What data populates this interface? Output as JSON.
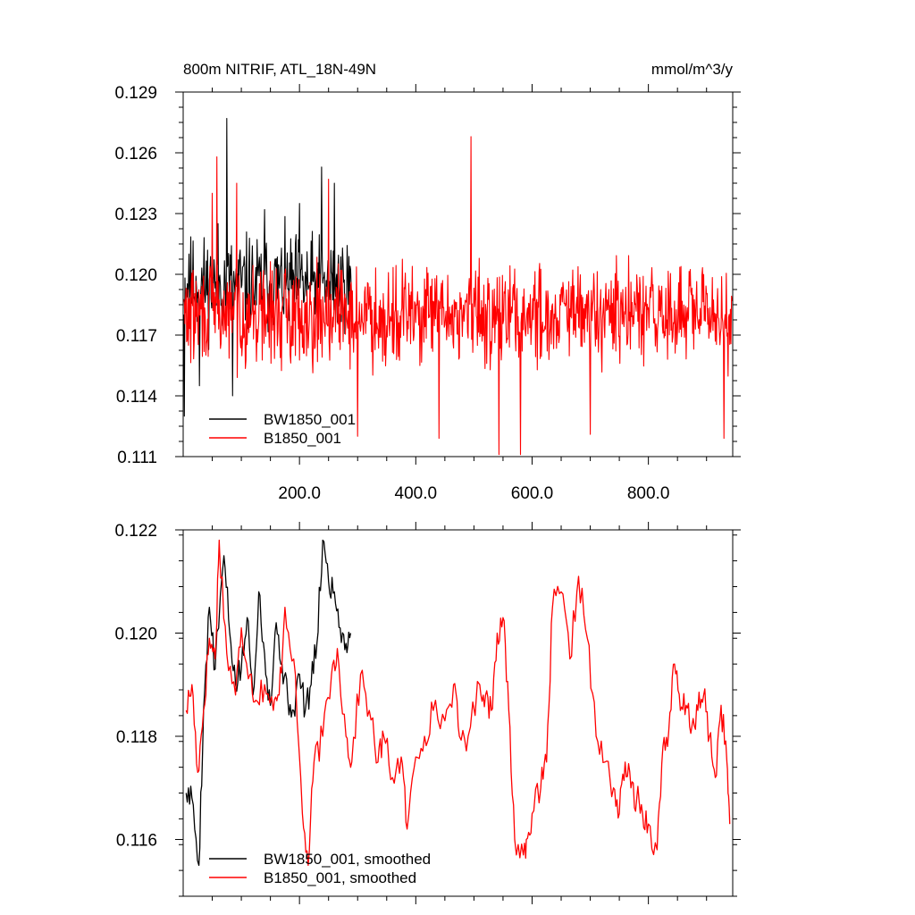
{
  "chart_data": [
    {
      "type": "line",
      "title": "800m NITRIF, ATL_18N-49N",
      "units": "mmol/m^3/y",
      "xlabel": "",
      "ylabel": "",
      "xlim": [
        0,
        945
      ],
      "ylim": [
        0.111,
        0.129
      ],
      "xticks": [
        200,
        400,
        600,
        800
      ],
      "xtick_labels": [
        "200.0",
        "400.0",
        "600.0",
        "800.0"
      ],
      "yticks": [
        0.111,
        0.114,
        0.117,
        0.12,
        0.123,
        0.126,
        0.129
      ],
      "ytick_labels": [
        "0.111",
        "0.114",
        "0.117",
        "0.120",
        "0.123",
        "0.126",
        "0.129"
      ],
      "grid": false,
      "legend_position": "bottom-left",
      "series": [
        {
          "name": "BW1850_001",
          "color": "#000000",
          "x_range": [
            1,
            290
          ],
          "mean": 0.1195,
          "amplitude": 0.0022,
          "seed": 11,
          "anchors": [
            [
              2,
              0.113
            ],
            [
              10,
              0.121
            ],
            [
              28,
              0.1145
            ],
            [
              60,
              0.1225
            ],
            [
              75,
              0.1277
            ],
            [
              85,
              0.114
            ],
            [
              140,
              0.1232
            ],
            [
              200,
              0.1235
            ],
            [
              238,
              0.1253
            ],
            [
              260,
              0.1245
            ],
            [
              290,
              0.119
            ]
          ]
        },
        {
          "name": "B1850_001",
          "color": "#ff0000",
          "x_range": [
            1,
            945
          ],
          "mean": 0.118,
          "amplitude": 0.0022,
          "seed": 29,
          "anchors": [
            [
              50,
              0.124
            ],
            [
              58,
              0.1258
            ],
            [
              92,
              0.1245
            ],
            [
              250,
              0.1247
            ],
            [
              300,
              0.112
            ],
            [
              440,
              0.1119
            ],
            [
              495,
              0.1268
            ],
            [
              543,
              0.1111
            ],
            [
              580,
              0.1111
            ],
            [
              700,
              0.1121
            ],
            [
              930,
              0.1119
            ]
          ]
        }
      ]
    },
    {
      "type": "line",
      "title": "",
      "xlabel": "",
      "ylabel": "",
      "xlim": [
        0,
        945
      ],
      "ylim": [
        0.1149,
        0.122
      ],
      "xticks": [
        200,
        400,
        600,
        800
      ],
      "xtick_labels": [],
      "yticks": [
        0.116,
        0.118,
        0.12,
        0.122
      ],
      "ytick_labels": [
        "0.116",
        "0.118",
        "0.120",
        "0.122"
      ],
      "grid": false,
      "legend_position": "bottom-left",
      "series": [
        {
          "name": "BW1850_001, smoothed",
          "color": "#000000",
          "x": [
            5,
            15,
            27,
            35,
            45,
            55,
            70,
            80,
            90,
            100,
            110,
            120,
            130,
            140,
            150,
            160,
            170,
            180,
            190,
            200,
            210,
            220,
            230,
            240,
            250,
            260,
            270,
            280,
            288
          ],
          "values": [
            0.1169,
            0.1168,
            0.1155,
            0.1185,
            0.1205,
            0.1193,
            0.1215,
            0.12,
            0.119,
            0.1193,
            0.1203,
            0.1188,
            0.1208,
            0.1196,
            0.1186,
            0.1202,
            0.1194,
            0.1187,
            0.1185,
            0.1192,
            0.1185,
            0.119,
            0.1198,
            0.1218,
            0.121,
            0.1208,
            0.1201,
            0.1198,
            0.12
          ],
          "jitter": 0.0003,
          "seed": 5
        },
        {
          "name": "B1850_001, smoothed",
          "color": "#ff0000",
          "x": [
            5,
            15,
            25,
            35,
            45,
            55,
            62,
            75,
            90,
            100,
            115,
            125,
            140,
            155,
            165,
            175,
            190,
            205,
            215,
            225,
            240,
            255,
            265,
            280,
            290,
            305,
            320,
            335,
            345,
            360,
            375,
            385,
            400,
            415,
            430,
            450,
            465,
            475,
            490,
            510,
            520,
            530,
            540,
            550,
            560,
            570,
            585,
            590,
            600,
            615,
            625,
            635,
            650,
            665,
            680,
            695,
            710,
            725,
            740,
            750,
            760,
            770,
            780,
            790,
            800,
            815,
            825,
            835,
            845,
            855,
            865,
            875,
            885,
            895,
            905,
            915,
            925,
            935,
            940
          ],
          "values": [
            0.1185,
            0.119,
            0.1173,
            0.1185,
            0.1199,
            0.1195,
            0.1218,
            0.1196,
            0.1188,
            0.1201,
            0.1192,
            0.1187,
            0.119,
            0.1185,
            0.1188,
            0.1205,
            0.1195,
            0.1165,
            0.1155,
            0.1175,
            0.118,
            0.1192,
            0.1197,
            0.118,
            0.1175,
            0.1192,
            0.1185,
            0.1175,
            0.118,
            0.1172,
            0.1176,
            0.1162,
            0.1176,
            0.118,
            0.1185,
            0.1183,
            0.119,
            0.118,
            0.118,
            0.119,
            0.1188,
            0.1185,
            0.12,
            0.1203,
            0.1185,
            0.116,
            0.1157,
            0.116,
            0.1165,
            0.117,
            0.1175,
            0.1205,
            0.1208,
            0.1195,
            0.1211,
            0.1199,
            0.118,
            0.1175,
            0.117,
            0.1165,
            0.1175,
            0.117,
            0.1168,
            0.1165,
            0.1163,
            0.1158,
            0.1178,
            0.1181,
            0.1194,
            0.1185,
            0.1186,
            0.1182,
            0.1185,
            0.1188,
            0.118,
            0.1172,
            0.1186,
            0.1175,
            0.1163
          ],
          "jitter": 0.0003,
          "seed": 17
        }
      ]
    }
  ]
}
